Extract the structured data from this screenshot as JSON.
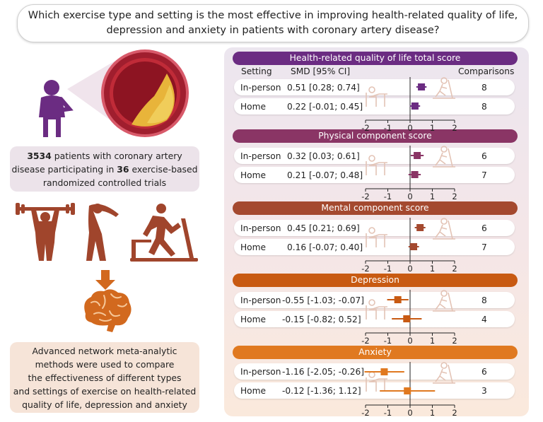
{
  "title": {
    "line1": "Which exercise type and setting is the most effective in improving health-related quality of life,",
    "line2": "depression and anxiety in patients with coronary artery disease?"
  },
  "patients_box": {
    "patients_count": "3534",
    "text1": " patients with coronary artery",
    "text2": "disease participating in ",
    "trials_count": "36",
    "text3": " exercise-based",
    "text4": "randomized controlled trials"
  },
  "methods_box": {
    "lines": [
      "Advanced network meta-analytic",
      "methods were used to compare",
      "the effectiveness of different types",
      "and settings of exercise on health-related",
      "quality of life, depression and anxiety"
    ]
  },
  "icons": [
    "patient-chest-pain-icon",
    "artery-cross-section-icon",
    "weightlifting-icon",
    "stretching-icon",
    "treadmill-icon",
    "down-arrow-icon",
    "brain-icon"
  ],
  "colors": {
    "purple": "#6b2c82",
    "plum": "#8a3565",
    "rust": "#a4492f",
    "orange": "#c85a12",
    "light_orange": "#e07920",
    "icon_brown": "#a0452c"
  },
  "column_headers": {
    "setting": "Setting",
    "smd": "SMD [95% CI]",
    "comparisons": "Comparisons"
  },
  "chart_data": {
    "type": "forest",
    "x_ticks": [
      "-2",
      "-1",
      "0",
      "1",
      "2"
    ],
    "xlim": [
      -2,
      2
    ],
    "sections": [
      {
        "title": "Health-related quality of life total score",
        "color": "#6b2c82",
        "rows": [
          {
            "setting": "In-person",
            "smd_text": "0.51 [0.28; 0.74]",
            "estimate": 0.51,
            "lower": 0.28,
            "upper": 0.74,
            "comparisons": "8"
          },
          {
            "setting": "Home",
            "smd_text": "0.22 [-0.01; 0.45]",
            "estimate": 0.22,
            "lower": -0.01,
            "upper": 0.45,
            "comparisons": "8"
          }
        ]
      },
      {
        "title": "Physical component score",
        "color": "#8a3565",
        "rows": [
          {
            "setting": "In-person",
            "smd_text": "0.32 [0.03; 0.61]",
            "estimate": 0.32,
            "lower": 0.03,
            "upper": 0.61,
            "comparisons": "6"
          },
          {
            "setting": "Home",
            "smd_text": "0.21 [-0.07; 0.48]",
            "estimate": 0.21,
            "lower": -0.07,
            "upper": 0.48,
            "comparisons": "7"
          }
        ]
      },
      {
        "title": "Mental component score",
        "color": "#a4492f",
        "rows": [
          {
            "setting": "In-person",
            "smd_text": "0.45 [0.21; 0.69]",
            "estimate": 0.45,
            "lower": 0.21,
            "upper": 0.69,
            "comparisons": "6"
          },
          {
            "setting": "Home",
            "smd_text": "0.16 [-0.07; 0.40]",
            "estimate": 0.16,
            "lower": -0.07,
            "upper": 0.4,
            "comparisons": "7"
          }
        ]
      },
      {
        "title": "Depression",
        "color": "#c85a12",
        "rows": [
          {
            "setting": "In-person",
            "smd_text": "-0.55 [-1.03; -0.07]",
            "estimate": -0.55,
            "lower": -1.03,
            "upper": -0.07,
            "comparisons": "8"
          },
          {
            "setting": "Home",
            "smd_text": "-0.15 [-0.82; 0.52]",
            "estimate": -0.15,
            "lower": -0.82,
            "upper": 0.52,
            "comparisons": "4"
          }
        ]
      },
      {
        "title": "Anxiety",
        "color": "#e07920",
        "rows": [
          {
            "setting": "In-person",
            "smd_text": "-1.16 [-2.05; -0.26]",
            "estimate": -1.16,
            "lower": -2.05,
            "upper": -0.26,
            "comparisons": "6"
          },
          {
            "setting": "Home",
            "smd_text": "-0.12 [-1.36; 1.12]",
            "estimate": -0.12,
            "lower": -1.36,
            "upper": 1.12,
            "comparisons": "3"
          }
        ]
      }
    ]
  }
}
